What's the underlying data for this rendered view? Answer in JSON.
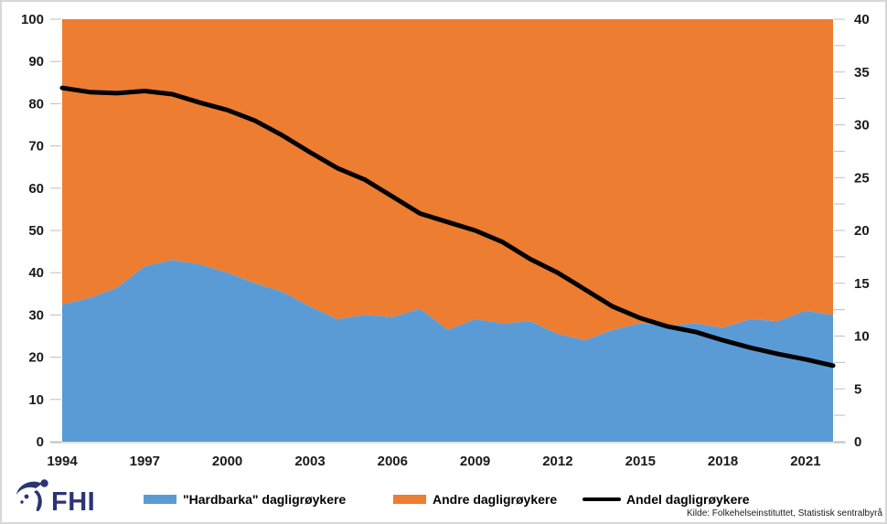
{
  "figure": {
    "source_note": "Kilde: Folkehelseinstituttet, Statistisk sentralbyrå",
    "logo_text": "FHI",
    "logo_color": "#2A3572"
  },
  "legend": [
    {
      "label": "\"Hardbarka\" dagligrøykere",
      "swatch": "area",
      "color": "#5B9BD5"
    },
    {
      "label": "Andre dagligrøykere",
      "swatch": "area",
      "color": "#ED7D31"
    },
    {
      "label": "Andel dagligrøykere",
      "swatch": "line",
      "color": "#000000"
    }
  ],
  "chart_data": {
    "type": "area",
    "subtype": "100%-stacked-area-with-line-overlay",
    "title": "",
    "xlabel": "",
    "ylabel_left": "",
    "ylabel_right": "",
    "grid": false,
    "legend_position": "bottom",
    "x": [
      1994,
      1995,
      1996,
      1997,
      1998,
      1999,
      2000,
      2001,
      2002,
      2003,
      2004,
      2005,
      2006,
      2007,
      2008,
      2009,
      2010,
      2011,
      2012,
      2013,
      2014,
      2015,
      2016,
      2017,
      2018,
      2019,
      2020,
      2021,
      2022
    ],
    "series": [
      {
        "name": "\"Hardbarka\" dagligrøykere",
        "type": "area",
        "axis": "left",
        "color": "#5B9BD5",
        "values": [
          32.5,
          34,
          36.5,
          41.5,
          43,
          42,
          40,
          37.5,
          35.5,
          32,
          29,
          30,
          29.5,
          31.5,
          26.5,
          29,
          28,
          28.5,
          25.5,
          24,
          26.5,
          28,
          27.5,
          28,
          27,
          29,
          28.5,
          31,
          30
        ]
      },
      {
        "name": "Andre dagligrøykere",
        "type": "area",
        "axis": "left",
        "color": "#ED7D31",
        "note": "stacked on top of Hardbarka so the two areas always total 100",
        "values": [
          67.5,
          66,
          63.5,
          58.5,
          57,
          58,
          60,
          62.5,
          64.5,
          68,
          71,
          70,
          70.5,
          68.5,
          73.5,
          71,
          72,
          71.5,
          74.5,
          76,
          73.5,
          72,
          72.5,
          72,
          73,
          71,
          71.5,
          69,
          70
        ]
      },
      {
        "name": "Andel dagligrøykere",
        "type": "line",
        "axis": "right",
        "color": "#000000",
        "stroke_width": 5,
        "values": [
          33.5,
          33.1,
          33.0,
          33.2,
          32.9,
          32.1,
          31.4,
          30.4,
          29.0,
          27.4,
          25.9,
          24.8,
          23.2,
          21.6,
          20.8,
          20.0,
          18.9,
          17.3,
          16.0,
          14.4,
          12.8,
          11.7,
          10.9,
          10.4,
          9.6,
          8.9,
          8.3,
          7.8,
          7.2
        ]
      }
    ],
    "left_axis": {
      "min": 0,
      "max": 100,
      "tick_step": 10,
      "tick_labels": [
        "0",
        "10",
        "20",
        "30",
        "40",
        "50",
        "60",
        "70",
        "80",
        "90",
        "100"
      ]
    },
    "right_axis": {
      "min": 0,
      "max": 40,
      "label_step": 5,
      "minor_tick_step": 2.5,
      "tick_labels": [
        "0",
        "5",
        "10",
        "15",
        "20",
        "25",
        "30",
        "35",
        "40"
      ]
    },
    "x_axis": {
      "tick_labels": [
        "1994",
        "1997",
        "2000",
        "2003",
        "2006",
        "2009",
        "2012",
        "2015",
        "2018",
        "2021"
      ],
      "label_every_n_years": 3
    },
    "axis_color": "#BFBFBF"
  }
}
